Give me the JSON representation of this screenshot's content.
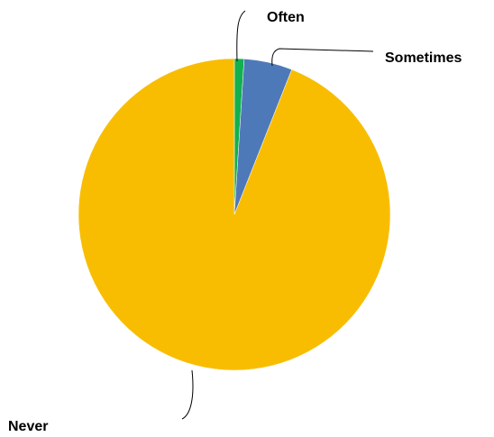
{
  "chart_data": {
    "type": "pie",
    "title": "",
    "start_angle_deg": 0,
    "direction": "clockwise",
    "slices": [
      {
        "label": "Often",
        "value": 1,
        "color": "#12b04f"
      },
      {
        "label": "Sometimes",
        "value": 5,
        "color": "#4e79b9"
      },
      {
        "label": "Never",
        "value": 94,
        "color": "#f8bd00"
      }
    ],
    "legend": "none",
    "data_labels": "category names with leader lines"
  }
}
